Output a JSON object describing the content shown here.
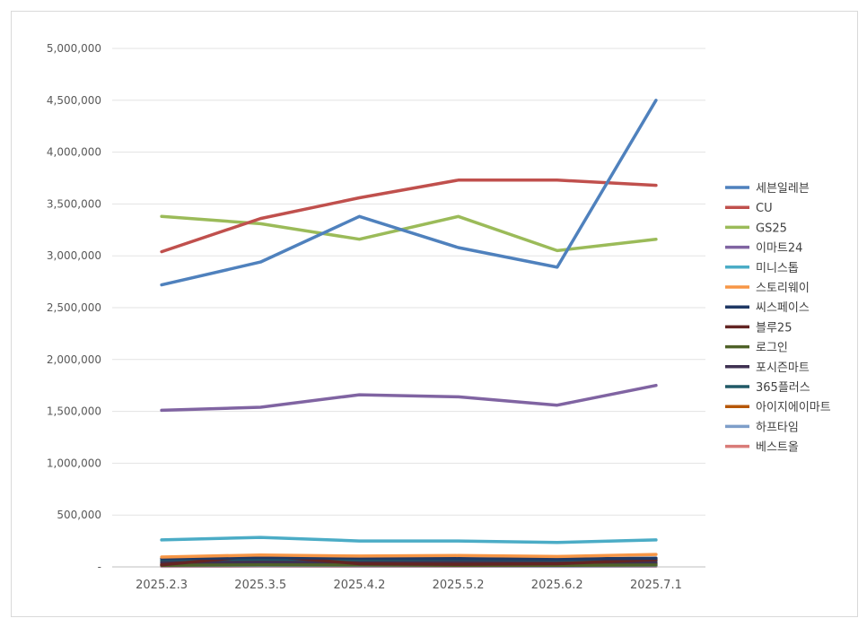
{
  "chart_data": {
    "type": "line",
    "categories": [
      "2025.2.3",
      "2025.3.5",
      "2025.4.2",
      "2025.5.2",
      "2025.6.2",
      "2025.7.1"
    ],
    "ylim": [
      0,
      5000000
    ],
    "y_ticks": [
      0,
      500000,
      1000000,
      1500000,
      2000000,
      2500000,
      3000000,
      3500000,
      4000000,
      4500000,
      5000000
    ],
    "y_tick_labels": [
      "-",
      "500,000",
      "1,000,000",
      "1,500,000",
      "2,000,000",
      "2,500,000",
      "3,000,000",
      "3,500,000",
      "4,000,000",
      "4,500,000",
      "5,000,000"
    ],
    "grid": true,
    "legend_position": "right",
    "series": [
      {
        "name": "세븐일레븐",
        "color": "#4f81bd",
        "values": [
          2720000,
          2940000,
          3380000,
          3080000,
          2890000,
          4500000
        ]
      },
      {
        "name": "CU",
        "color": "#c0504d",
        "values": [
          3040000,
          3360000,
          3560000,
          3730000,
          3730000,
          3680000
        ]
      },
      {
        "name": "GS25",
        "color": "#9bbb59",
        "values": [
          3380000,
          3310000,
          3160000,
          3380000,
          3050000,
          3160000
        ]
      },
      {
        "name": "이마트24",
        "color": "#8064a2",
        "values": [
          1510000,
          1540000,
          1660000,
          1640000,
          1560000,
          1750000
        ]
      },
      {
        "name": "미니스톱",
        "color": "#4bacc6",
        "values": [
          260000,
          285000,
          250000,
          250000,
          235000,
          260000
        ]
      },
      {
        "name": "스토리웨이",
        "color": "#f79646",
        "values": [
          95000,
          115000,
          105000,
          110000,
          100000,
          120000
        ]
      },
      {
        "name": "씨스페이스",
        "color": "#1f3864",
        "values": [
          80000,
          90000,
          85000,
          80000,
          75000,
          85000
        ]
      },
      {
        "name": "블루25",
        "color": "#632523",
        "values": [
          20000,
          110000,
          30000,
          25000,
          30000,
          70000
        ]
      },
      {
        "name": "로그인",
        "color": "#4f6228",
        "values": [
          15000,
          20000,
          18000,
          16000,
          15000,
          18000
        ]
      },
      {
        "name": "포시즌마트",
        "color": "#3f3151",
        "values": [
          40000,
          45000,
          40000,
          42000,
          38000,
          40000
        ]
      },
      {
        "name": "365플러스",
        "color": "#215967",
        "values": [
          60000,
          65000,
          60000,
          62000,
          58000,
          60000
        ]
      },
      {
        "name": "아이지에이마트",
        "color": "#b65708",
        "values": [
          25000,
          30000,
          28000,
          26000,
          24000,
          28000
        ]
      },
      {
        "name": "하프타임",
        "color": "#7e9ec9",
        "values": [
          10000,
          12000,
          11000,
          10000,
          9000,
          11000
        ]
      },
      {
        "name": "베스트올",
        "color": "#d97b78",
        "values": [
          5000,
          8000,
          6000,
          7000,
          5000,
          6000
        ]
      }
    ]
  }
}
